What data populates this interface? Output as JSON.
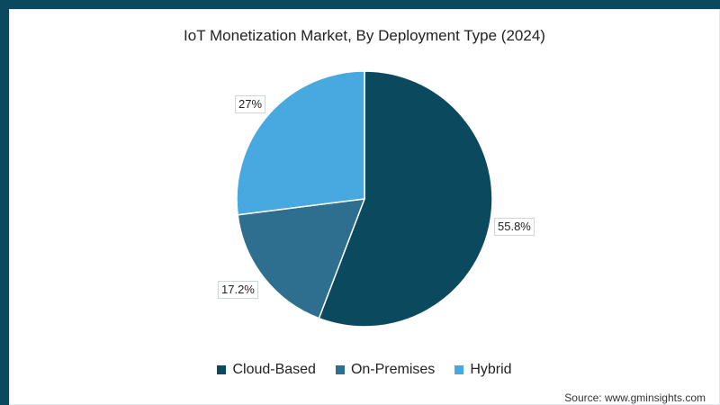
{
  "chart_data": {
    "type": "pie",
    "title": "IoT Monetization Market, By Deployment Type (2024)",
    "categories": [
      "Cloud-Based",
      "On-Premises",
      "Hybrid"
    ],
    "values": [
      55.8,
      17.2,
      27
    ],
    "labels": [
      "55.8%",
      "17.2%",
      "27%"
    ],
    "colors": [
      "#0b4a5e",
      "#2e6e8e",
      "#47a9df"
    ],
    "legend_position": "bottom",
    "start_angle": "12 o'clock",
    "direction": "clockwise"
  },
  "title": "IoT Monetization Market, By Deployment Type (2024)",
  "legend": [
    {
      "label": "Cloud-Based",
      "color": "#0b4a5e"
    },
    {
      "label": "On-Premises",
      "color": "#2e6e8e"
    },
    {
      "label": "Hybrid",
      "color": "#47a9df"
    }
  ],
  "slice_labels": {
    "cloud": "55.8%",
    "onprem": "17.2%",
    "hybrid": "27%"
  },
  "source": "Source: www.gminsights.com",
  "frame_color": "#0b4a5e"
}
